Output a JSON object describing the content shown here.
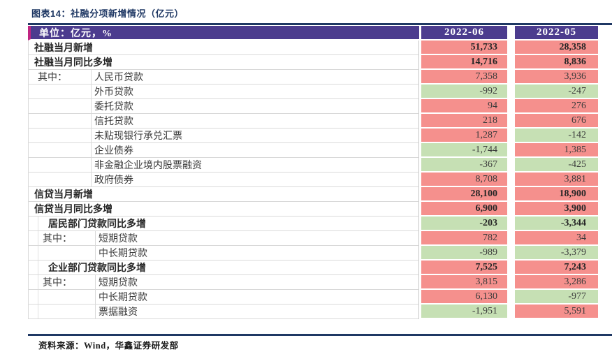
{
  "title": "图表14：社融分项新增情况（亿元）",
  "footer": "资料来源：Wind，华鑫证券研发部",
  "colors": {
    "positive_cell": "#F5908D",
    "negative_cell": "#C6E0B4",
    "header_bg": "#4C3C8E",
    "header_accent": "#C02582",
    "rule": "#1F3864",
    "title_text": "#1F3864"
  },
  "table": {
    "header": {
      "unit_label": "单位：亿元，%",
      "col1": "2022-06",
      "col2": "2022-05"
    },
    "rows": [
      {
        "label": "社融当月新增",
        "style": "section",
        "bold": true,
        "v1": "51,733",
        "s1": "pos",
        "v2": "28,358",
        "s2": "pos"
      },
      {
        "label": "社融当月同比多增",
        "style": "section",
        "bold": true,
        "v1": "14,716",
        "s1": "pos",
        "v2": "8,836",
        "s2": "pos"
      },
      {
        "prefix": "其中：",
        "label": "人民币贷款",
        "style": "split",
        "bold": false,
        "v1": "7,358",
        "s1": "pos",
        "v2": "3,936",
        "s2": "pos"
      },
      {
        "prefix": "",
        "label": "外币贷款",
        "style": "split",
        "bold": false,
        "v1": "-992",
        "s1": "neg",
        "v2": "-247",
        "s2": "neg"
      },
      {
        "prefix": "",
        "label": "委托贷款",
        "style": "split",
        "bold": false,
        "v1": "94",
        "s1": "pos",
        "v2": "276",
        "s2": "pos"
      },
      {
        "prefix": "",
        "label": "信托贷款",
        "style": "split",
        "bold": false,
        "v1": "218",
        "s1": "pos",
        "v2": "676",
        "s2": "pos"
      },
      {
        "prefix": "",
        "label": "未贴现银行承兑汇票",
        "style": "split",
        "bold": false,
        "v1": "1,287",
        "s1": "pos",
        "v2": "-142",
        "s2": "neg"
      },
      {
        "prefix": "",
        "label": "企业债券",
        "style": "split",
        "bold": false,
        "v1": "-1,744",
        "s1": "neg",
        "v2": "1,385",
        "s2": "pos"
      },
      {
        "prefix": "",
        "label": "非金融企业境内股票融资",
        "style": "split",
        "bold": false,
        "v1": "-367",
        "s1": "neg",
        "v2": "-425",
        "s2": "neg"
      },
      {
        "prefix": "",
        "label": "政府债券",
        "style": "split",
        "bold": false,
        "v1": "8,708",
        "s1": "pos",
        "v2": "3,881",
        "s2": "pos"
      },
      {
        "label": "信贷当月新增",
        "style": "section",
        "bold": true,
        "v1": "28,100",
        "s1": "pos",
        "v2": "18,900",
        "s2": "pos"
      },
      {
        "label": "信贷当月同比多增",
        "style": "section",
        "bold": true,
        "v1": "6,900",
        "s1": "pos",
        "v2": "3,900",
        "s2": "pos"
      },
      {
        "label": "居民部门贷款同比多增",
        "style": "section2",
        "bold": true,
        "v1": "-203",
        "s1": "neg",
        "v2": "-3,344",
        "s2": "neg"
      },
      {
        "prefix": "其中：",
        "label": "短期贷款",
        "style": "split2",
        "bold": false,
        "v1": "782",
        "s1": "pos",
        "v2": "34",
        "s2": "pos"
      },
      {
        "prefix": "",
        "label": "中长期贷款",
        "style": "split2",
        "bold": false,
        "v1": "-989",
        "s1": "neg",
        "v2": "-3,379",
        "s2": "neg"
      },
      {
        "label": "企业部门贷款同比多增",
        "style": "section2",
        "bold": true,
        "v1": "7,525",
        "s1": "pos",
        "v2": "7,243",
        "s2": "pos"
      },
      {
        "prefix": "其中：",
        "label": "短期贷款",
        "style": "split2",
        "bold": false,
        "v1": "3,815",
        "s1": "pos",
        "v2": "3,286",
        "s2": "pos"
      },
      {
        "prefix": "",
        "label": "中长期贷款",
        "style": "split2",
        "bold": false,
        "v1": "6,130",
        "s1": "pos",
        "v2": "-977",
        "s2": "neg"
      },
      {
        "prefix": "",
        "label": "票据融资",
        "style": "split2",
        "bold": false,
        "v1": "-1,951",
        "s1": "neg",
        "v2": "5,591",
        "s2": "pos"
      }
    ]
  },
  "chart_data": {
    "type": "table",
    "title": "图表14：社融分项新增情况（亿元）",
    "columns": [
      "单位：亿元，%",
      "2022-06",
      "2022-05"
    ],
    "rows": [
      [
        "社融当月新增",
        51733,
        28358
      ],
      [
        "社融当月同比多增",
        14716,
        8836
      ],
      [
        "其中：人民币贷款",
        7358,
        3936
      ],
      [
        "外币贷款",
        -992,
        -247
      ],
      [
        "委托贷款",
        94,
        276
      ],
      [
        "信托贷款",
        218,
        676
      ],
      [
        "未贴现银行承兑汇票",
        1287,
        -142
      ],
      [
        "企业债券",
        -1744,
        1385
      ],
      [
        "非金融企业境内股票融资",
        -367,
        -425
      ],
      [
        "政府债券",
        8708,
        3881
      ],
      [
        "信贷当月新增",
        28100,
        18900
      ],
      [
        "信贷当月同比多增",
        6900,
        3900
      ],
      [
        "居民部门贷款同比多增",
        -203,
        -3344
      ],
      [
        "其中：短期贷款",
        782,
        34
      ],
      [
        "中长期贷款",
        -989,
        -3379
      ],
      [
        "企业部门贷款同比多增",
        7525,
        7243
      ],
      [
        "其中：短期贷款",
        3815,
        3286
      ],
      [
        "中长期贷款",
        6130,
        -977
      ],
      [
        "票据融资",
        -1951,
        5591
      ]
    ],
    "cell_color_rule": "positive values shaded pink #F5908D, negative values shaded green #C6E0B4",
    "source_note": "资料来源：Wind，华鑫证券研发部"
  }
}
